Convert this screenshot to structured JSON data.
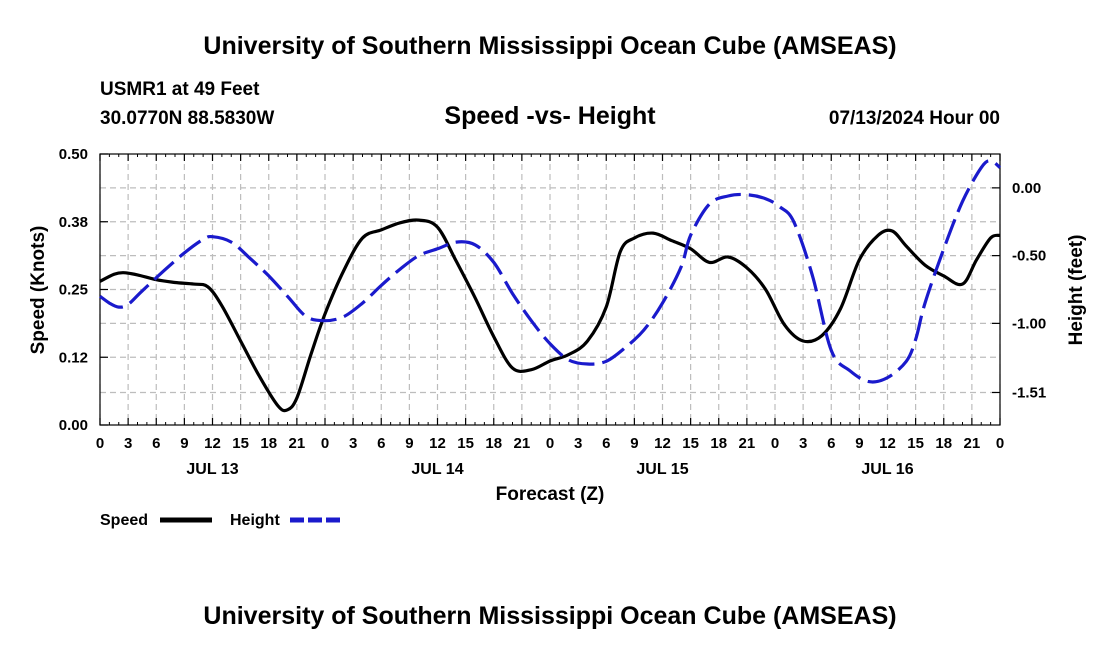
{
  "page": {
    "title": "University of Southern Mississippi Ocean Cube (AMSEAS)",
    "station": "USMR1 at 49 Feet",
    "coords": "30.0770N  88.5830W",
    "datetime": "07/13/2024 Hour 00",
    "bottom_title": "University of Southern Mississippi Ocean Cube (AMSEAS)"
  },
  "colors": {
    "speed": "#000000",
    "height": "#1a1acc",
    "grid": "#bdbdbd"
  },
  "chart_data": {
    "type": "line",
    "title": "Speed -vs- Height",
    "xlabel": "Forecast (Z)",
    "ylabel": "Speed (Knots)",
    "y2label": "Height (feet)",
    "xlim": [
      0,
      96
    ],
    "ylim": [
      0,
      0.5
    ],
    "y2lim": [
      -1.75,
      0.25
    ],
    "x_ticks": [
      0,
      3,
      6,
      9,
      12,
      15,
      18,
      21,
      24,
      27,
      30,
      33,
      36,
      39,
      42,
      45,
      48,
      51,
      54,
      57,
      60,
      63,
      66,
      69,
      72,
      75,
      78,
      81,
      84,
      87,
      90,
      93,
      96
    ],
    "x_tick_labels": [
      "0",
      "3",
      "6",
      "9",
      "12",
      "15",
      "18",
      "21",
      "0",
      "3",
      "6",
      "9",
      "12",
      "15",
      "18",
      "21",
      "0",
      "3",
      "6",
      "9",
      "12",
      "15",
      "18",
      "21",
      "0",
      "3",
      "6",
      "9",
      "12",
      "15",
      "18",
      "21",
      "0"
    ],
    "day_labels": [
      {
        "x": 12,
        "label": "JUL 13"
      },
      {
        "x": 36,
        "label": "JUL 14"
      },
      {
        "x": 60,
        "label": "JUL 15"
      },
      {
        "x": 84,
        "label": "JUL 16"
      }
    ],
    "y_ticks": [
      0.0,
      0.125,
      0.25,
      0.375,
      0.5
    ],
    "y_tick_labels": [
      "0.00",
      "0.12",
      "0.25",
      "0.38",
      "0.50"
    ],
    "y2_ticks": [
      -1.51,
      -1.0,
      -0.5,
      0.0
    ],
    "y2_tick_labels": [
      "-1.51",
      "-1.00",
      "-0.50",
      "0.00"
    ],
    "legend": [
      {
        "name": "Speed",
        "style": "solid"
      },
      {
        "name": "Height",
        "style": "dashed"
      }
    ],
    "series": [
      {
        "name": "Speed",
        "axis": "left",
        "x": [
          0,
          1.5,
          2.5,
          4,
          6,
          8,
          10,
          11.5,
          13,
          15,
          17,
          19,
          20,
          21,
          22.5,
          24,
          26,
          28,
          30,
          32,
          34,
          36,
          38,
          40,
          42,
          44,
          46,
          48,
          50,
          52,
          54,
          55.5,
          57,
          59,
          61,
          63,
          65,
          67,
          69,
          71,
          73,
          75,
          77,
          79,
          81,
          83,
          84.5,
          86,
          88,
          90,
          92,
          93.5,
          95,
          96
        ],
        "values": [
          0.265,
          0.278,
          0.281,
          0.277,
          0.268,
          0.263,
          0.26,
          0.255,
          0.22,
          0.155,
          0.09,
          0.035,
          0.028,
          0.05,
          0.13,
          0.205,
          0.285,
          0.345,
          0.36,
          0.373,
          0.378,
          0.365,
          0.302,
          0.235,
          0.163,
          0.105,
          0.102,
          0.118,
          0.13,
          0.155,
          0.218,
          0.32,
          0.345,
          0.354,
          0.34,
          0.325,
          0.3,
          0.31,
          0.29,
          0.25,
          0.185,
          0.155,
          0.165,
          0.215,
          0.305,
          0.35,
          0.358,
          0.33,
          0.295,
          0.275,
          0.26,
          0.305,
          0.345,
          0.35
        ]
      },
      {
        "name": "Height",
        "axis": "right",
        "x": [
          0,
          1,
          2,
          3,
          4.5,
          7,
          9,
          11,
          12,
          14,
          16,
          18,
          20,
          22,
          24,
          26,
          28,
          30,
          32,
          34,
          36,
          38,
          40,
          42,
          44,
          46,
          48,
          50,
          52,
          54,
          56,
          58,
          60,
          62,
          63,
          65,
          67,
          69,
          71,
          72.5,
          74,
          76,
          78,
          80,
          82,
          84,
          86,
          87,
          88,
          90,
          92,
          94,
          95,
          96
        ],
        "values": [
          -0.8,
          -0.85,
          -0.88,
          -0.86,
          -0.76,
          -0.6,
          -0.48,
          -0.38,
          -0.36,
          -0.4,
          -0.52,
          -0.65,
          -0.8,
          -0.95,
          -0.98,
          -0.95,
          -0.85,
          -0.72,
          -0.6,
          -0.5,
          -0.45,
          -0.4,
          -0.42,
          -0.55,
          -0.78,
          -0.98,
          -1.15,
          -1.27,
          -1.3,
          -1.28,
          -1.18,
          -1.05,
          -0.85,
          -0.58,
          -0.35,
          -0.12,
          -0.06,
          -0.05,
          -0.08,
          -0.14,
          -0.25,
          -0.65,
          -1.2,
          -1.35,
          -1.43,
          -1.4,
          -1.28,
          -1.12,
          -0.85,
          -0.45,
          -0.1,
          0.15,
          0.2,
          0.15
        ]
      }
    ]
  }
}
